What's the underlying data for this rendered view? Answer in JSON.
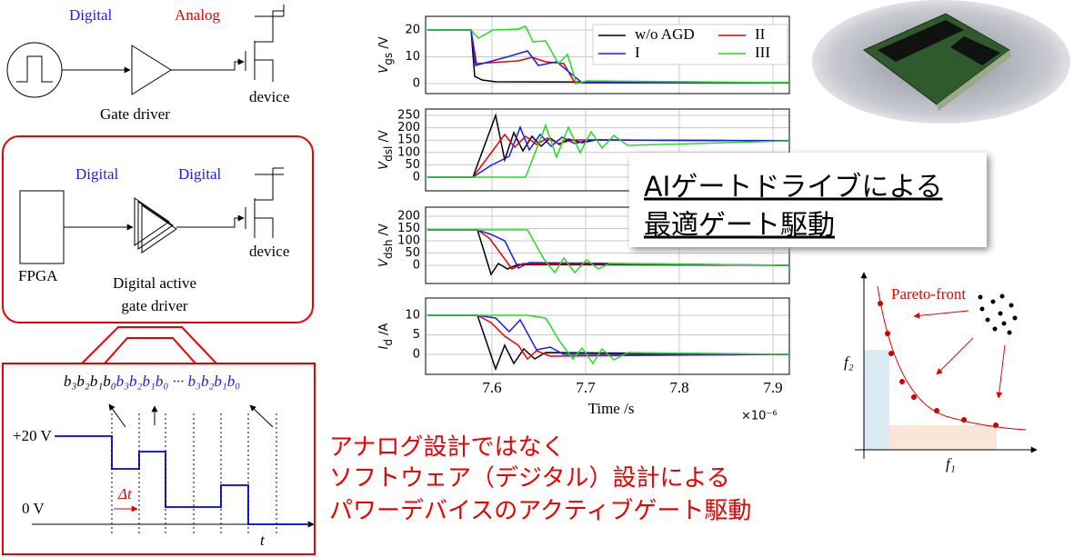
{
  "top_diagram": {
    "label_left": "Digital",
    "label_right": "Analog",
    "driver": "Gate driver",
    "device": "device"
  },
  "active_diagram": {
    "label_left": "Digital",
    "label_right": "Digital",
    "fpga": "FPGA",
    "driver_line1": "Digital active",
    "driver_line2": "gate driver",
    "device": "device"
  },
  "timing": {
    "bits_black": "b₃b₂b₁b₀",
    "bits_blue": "b₃b₂b₁b₀ ··· b₃b₂b₁b₀",
    "high": "+20 V",
    "low": "0 V",
    "delta": "Δt",
    "time": "t"
  },
  "plots": {
    "legend": [
      "w/o AGD",
      "II",
      "I",
      "III"
    ],
    "panels": [
      {
        "symbol": "V",
        "subscript": "gs",
        "unit": " /V",
        "yticks": [
          "0",
          "10",
          "20"
        ]
      },
      {
        "symbol": "V",
        "subscript": "dsl",
        "unit": " /V",
        "yticks": [
          "0",
          "50",
          "100",
          "150",
          "200",
          "250"
        ]
      },
      {
        "symbol": "V",
        "subscript": "dsh",
        "unit": " /V",
        "yticks": [
          "0",
          "50",
          "100",
          "150",
          "200"
        ]
      },
      {
        "symbol": "I",
        "subscript": "d",
        "unit": " /A",
        "yticks": [
          "0",
          "5",
          "10"
        ]
      }
    ],
    "xticks": [
      "7.6",
      "7.7",
      "7.8",
      "7.9"
    ],
    "xlabel": "Time /s",
    "xscale": "×10⁻⁶"
  },
  "banner": {
    "line1": "AIゲートドライブによる",
    "line2": "最適ゲート駆動"
  },
  "pareto": {
    "label": "Pareto-front",
    "x_axis": "f₁",
    "y_axis": "f₂"
  },
  "caption": [
    "アナログ設計ではなく",
    "ソフトウェア（デジタル）設計による",
    "パワーデバイスのアクティブゲート駆動"
  ]
}
